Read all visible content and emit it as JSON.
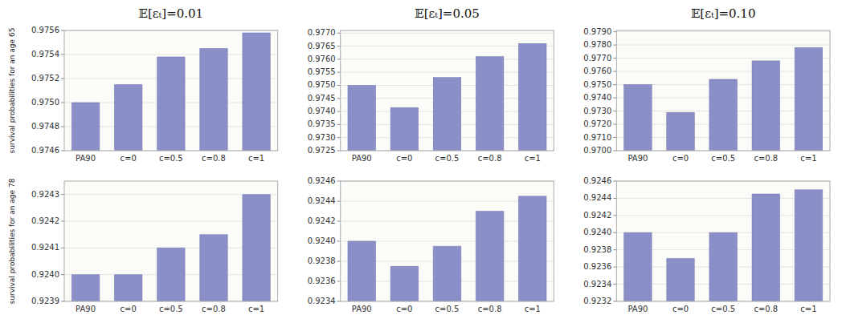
{
  "chart_data": [
    {
      "type": "bar",
      "title": "𝔼[εₜ]=0.01",
      "ylabel": "survival probabilities for an age 65",
      "categories": [
        "PA90",
        "c=0",
        "c=0.5",
        "c=0.8",
        "c=1"
      ],
      "values": [
        0.975,
        0.97515,
        0.97538,
        0.97545,
        0.97558
      ],
      "color": "#8b8fc8",
      "ylim": [
        0.9746,
        0.9756
      ],
      "yticks": [
        0.9746,
        0.9748,
        {
          "value": 0.975,
          "label": "0.9750"
        },
        0.9752,
        0.9754,
        0.9756
      ],
      "grid": true
    },
    {
      "type": "bar",
      "title": "𝔼[εₜ]=0.05",
      "categories": [
        "PA90",
        "c=0",
        "c=0.5",
        "c=0.8",
        "c=1"
      ],
      "values": [
        0.975,
        0.97415,
        0.9753,
        0.9761,
        0.9766
      ],
      "color": "#8b8fc8",
      "ylim": [
        0.9725,
        0.9771
      ],
      "yticks": [
        0.9725,
        {
          "value": 0.973,
          "label": "0.9730"
        },
        0.9735,
        {
          "value": 0.974,
          "label": "0.9740"
        },
        0.9745,
        {
          "value": 0.975,
          "label": "0.9750"
        },
        0.9755,
        {
          "value": 0.976,
          "label": "0.9760"
        },
        0.9765,
        {
          "value": 0.977,
          "label": "0.9770"
        }
      ],
      "grid": true
    },
    {
      "type": "bar",
      "title": "𝔼[εₜ]=0.10",
      "categories": [
        "PA90",
        "c=0",
        "c=0.5",
        "c=0.8",
        "c=1"
      ],
      "values": [
        0.975,
        0.9729,
        0.9754,
        0.9768,
        0.9778
      ],
      "color": "#8b8fc8",
      "ylim": [
        0.97,
        0.9791
      ],
      "yticks": [
        {
          "value": 0.97,
          "label": "0.9700"
        },
        {
          "value": 0.971,
          "label": "0.9710"
        },
        {
          "value": 0.972,
          "label": "0.9720"
        },
        {
          "value": 0.973,
          "label": "0.9730"
        },
        {
          "value": 0.974,
          "label": "0.9740"
        },
        {
          "value": 0.975,
          "label": "0.9750"
        },
        {
          "value": 0.976,
          "label": "0.9760"
        },
        {
          "value": 0.977,
          "label": "0.9770"
        },
        {
          "value": 0.978,
          "label": "0.9780"
        },
        {
          "value": 0.979,
          "label": "0.9790"
        }
      ],
      "grid": true
    },
    {
      "type": "bar",
      "ylabel": "survival probabilities for an age 78",
      "categories": [
        "PA90",
        "c=0",
        "c=0.5",
        "c=0.8",
        "c=1"
      ],
      "values": [
        0.924,
        0.924,
        0.9241,
        0.92415,
        0.9243
      ],
      "color": "#8b8fc8",
      "ylim": [
        0.9239,
        0.92435
      ],
      "yticks": [
        0.9239,
        {
          "value": 0.924,
          "label": "0.9240"
        },
        0.9241,
        0.9242,
        0.9243
      ],
      "grid": true
    },
    {
      "type": "bar",
      "categories": [
        "PA90",
        "c=0",
        "c=0.5",
        "c=0.8",
        "c=1"
      ],
      "values": [
        0.924,
        0.92375,
        0.92395,
        0.9243,
        0.92445
      ],
      "color": "#8b8fc8",
      "ylim": [
        0.9234,
        0.9246
      ],
      "yticks": [
        0.9234,
        0.9236,
        0.9238,
        {
          "value": 0.924,
          "label": "0.9240"
        },
        0.9242,
        0.9244,
        0.9246
      ],
      "grid": true
    },
    {
      "type": "bar",
      "categories": [
        "PA90",
        "c=0",
        "c=0.5",
        "c=0.8",
        "c=1"
      ],
      "values": [
        0.924,
        0.9237,
        0.924,
        0.92445,
        0.9245
      ],
      "color": "#8b8fc8",
      "ylim": [
        0.9232,
        0.9246
      ],
      "yticks": [
        0.9232,
        0.9234,
        0.9236,
        0.9238,
        {
          "value": 0.924,
          "label": "0.9240"
        },
        0.9242,
        0.9244,
        0.9246
      ],
      "grid": true
    }
  ]
}
